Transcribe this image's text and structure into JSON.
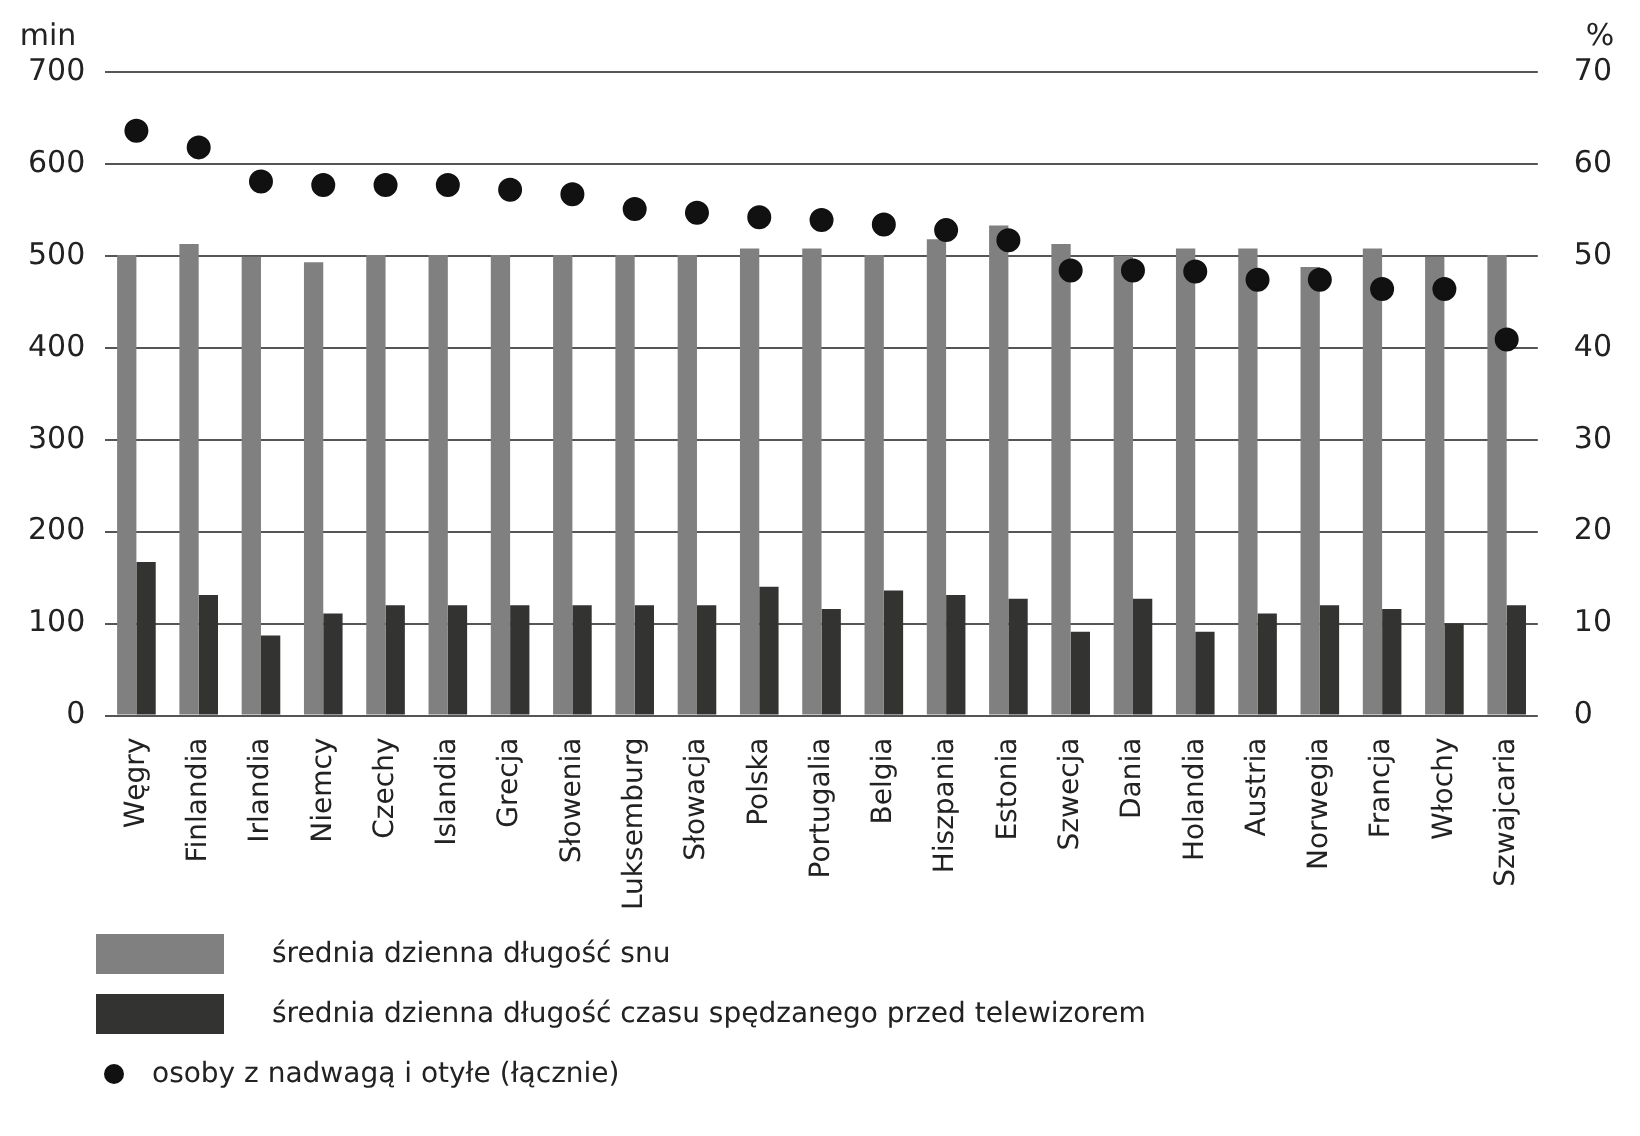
{
  "chart_data": {
    "type": "bar",
    "ylabel": "min",
    "y2label": "%",
    "categories": [
      "Węgry",
      "Finlandia",
      "Irlandia",
      "Niemcy",
      "Czechy",
      "Islandia",
      "Grecja",
      "Słowenia",
      "Luksemburg",
      "Słowacja",
      "Polska",
      "Portugalia",
      "Belgia",
      "Hiszpania",
      "Estonia",
      "Szwecja",
      "Dania",
      "Holandia",
      "Austria",
      "Norwegia",
      "Francja",
      "Włochy",
      "Szwajcaria"
    ],
    "series": [
      {
        "name": "średnia dzienna długość snu",
        "color": "#808080",
        "values": [
          501,
          513,
          499,
          493,
          501,
          501,
          501,
          501,
          501,
          501,
          508,
          508,
          501,
          518,
          533,
          513,
          500,
          508,
          508,
          488,
          508,
          499,
          501
        ]
      },
      {
        "name": "średnia dzienna długość czasu spędzanego przed telewizorem",
        "color": "#333331",
        "values": [
          167,
          131,
          87,
          111,
          120,
          120,
          120,
          120,
          120,
          120,
          140,
          116,
          136,
          131,
          127,
          91,
          127,
          91,
          111,
          120,
          116,
          100,
          120
        ]
      },
      {
        "name": "osoby z nadwagą i otyłe (łącznie)",
        "type": "scatter",
        "axis": "y2",
        "color": "#111111",
        "values": [
          63.6,
          61.8,
          58.1,
          57.7,
          57.7,
          57.7,
          57.2,
          56.7,
          55.1,
          54.7,
          54.2,
          53.9,
          53.4,
          52.8,
          51.7,
          48.4,
          48.4,
          48.3,
          47.4,
          47.4,
          46.4,
          46.4,
          40.9
        ]
      }
    ],
    "ylim": [
      0,
      700
    ],
    "yticks": [
      0,
      100,
      200,
      300,
      400,
      500,
      600,
      700
    ],
    "y2lim": [
      0,
      70
    ],
    "y2ticks": [
      0,
      10,
      20,
      30,
      40,
      50,
      60,
      70
    ],
    "grid": "y",
    "legend": "bottom left",
    "marker": "circle"
  }
}
